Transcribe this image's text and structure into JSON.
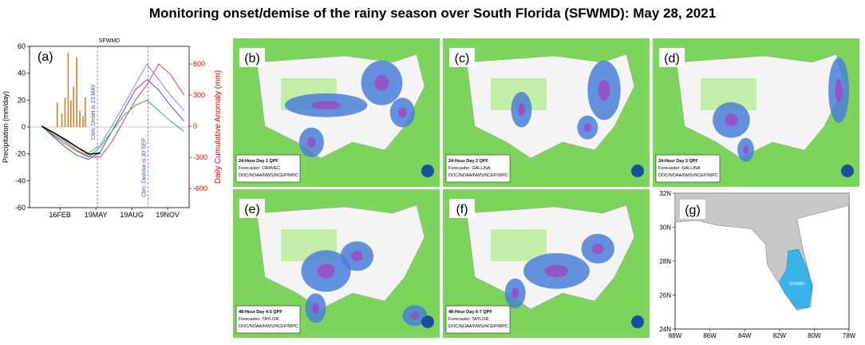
{
  "title": "Monitoring onset/demise of the rainy season over South Florida (SFWMD): May 28, 2021",
  "chart_data": {
    "type": "line",
    "panel_label": "(a)",
    "subtitle": "SFWMD",
    "y_label": "Precipitation (mm/day)",
    "y2_label": "Daily Cumulative Anomaly (mm)",
    "xlim": [
      -31,
      378
    ],
    "xticks": [
      {
        "value": 47,
        "label": "16FEB"
      },
      {
        "value": 139,
        "label": "19MAY"
      },
      {
        "value": 231,
        "label": "19AUG"
      },
      {
        "value": 323,
        "label": "19NOV"
      }
    ],
    "ylim": [
      -60,
      60
    ],
    "yticks": [
      60,
      40,
      20,
      0,
      -20,
      -40,
      -60
    ],
    "y2lim": [
      -785,
      770
    ],
    "y2ticks": [
      600,
      300,
      0,
      -300,
      -600
    ],
    "bars": {
      "color": "#c8842e",
      "x": [
        40,
        52,
        60,
        68,
        75,
        82,
        90,
        98,
        106,
        112
      ],
      "values": [
        18,
        10,
        22,
        55,
        20,
        30,
        52,
        12,
        8,
        22
      ]
    },
    "x": [
      0,
      30,
      60,
      90,
      120,
      150,
      180,
      210,
      240,
      270,
      300,
      330,
      365
    ],
    "series": [
      {
        "color": "#3344dd",
        "axis": "y2",
        "values": [
          0,
          -100,
          -200,
          -280,
          -320,
          -250,
          -50,
          150,
          350,
          450,
          350,
          200,
          50
        ]
      },
      {
        "color": "#e03030",
        "axis": "y2",
        "values": [
          0,
          -80,
          -150,
          -230,
          -290,
          -300,
          -150,
          50,
          250,
          400,
          600,
          500,
          300
        ]
      },
      {
        "color": "#22aa44",
        "axis": "y2",
        "values": [
          0,
          -90,
          -170,
          -240,
          -300,
          -200,
          -50,
          100,
          200,
          250,
          150,
          50,
          -50
        ]
      },
      {
        "color": "#7a7aee",
        "axis": "y2",
        "values": [
          0,
          -60,
          -120,
          -200,
          -260,
          -180,
          0,
          200,
          400,
          600,
          450,
          300,
          150
        ]
      },
      {
        "color": "#000000",
        "axis": "y2",
        "values": [
          0,
          -60,
          -130,
          -200,
          -270,
          -260,
          null,
          null,
          null,
          null,
          null,
          null,
          null
        ]
      }
    ],
    "annotations": [
      {
        "text": "Clim. Onset is 23 MAY",
        "x": 143
      },
      {
        "text": "Clim. Demise is 30 SEP",
        "x": 273
      }
    ]
  },
  "maps": [
    {
      "label": "(b)",
      "legend": [
        "24-Hour Day 1 QPF",
        "Forecaster: ORAVEC",
        "DOC/NOAA/NWS/NCEP/WPC"
      ]
    },
    {
      "label": "(c)",
      "legend": [
        "24-Hour Day 2 QPF",
        "Forecaster: GALLINA",
        "DOC/NOAA/NWS/NCEP/WPC"
      ]
    },
    {
      "label": "(d)",
      "legend": [
        "24-Hour Day 3 QPF",
        "Forecaster: GALLINA",
        "DOC/NOAA/NWS/NCEP/WPC"
      ]
    },
    {
      "label": "(e)",
      "legend": [
        "48-Hour Day 4-5 QPF",
        "Forecaster: TAYLOR",
        "DOC/NOAA/NWS/NCEP/WPC"
      ]
    },
    {
      "label": "(f)",
      "legend": [
        "48-Hour Day 6-7 QPF",
        "Forecaster: TAYLOR",
        "DOC/NOAA/NWS/NCEP/WPC"
      ]
    }
  ],
  "region_map": {
    "label": "(g)",
    "region": "SFWMD",
    "latlim": [
      24,
      32
    ],
    "lonlim": [
      -88,
      -78
    ],
    "latticks": [
      {
        "value": 32,
        "label": "32N"
      },
      {
        "value": 30,
        "label": "30N"
      },
      {
        "value": 28,
        "label": "28N"
      },
      {
        "value": 26,
        "label": "26N"
      },
      {
        "value": 24,
        "label": "24N"
      }
    ],
    "lonticks": [
      {
        "value": -88,
        "label": "88W"
      },
      {
        "value": -86,
        "label": "86W"
      },
      {
        "value": -84,
        "label": "84W"
      },
      {
        "value": -82,
        "label": "82W"
      },
      {
        "value": -80,
        "label": "80W"
      },
      {
        "value": -78,
        "label": "78W"
      }
    ]
  }
}
